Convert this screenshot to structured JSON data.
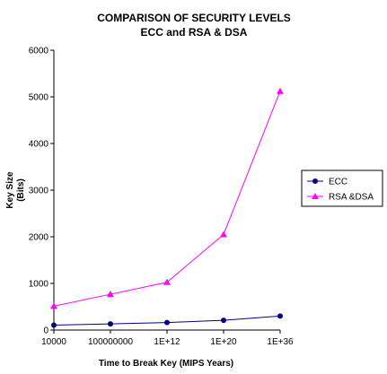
{
  "chart_data": {
    "type": "line",
    "title": "COMPARISON OF SECURITY LEVELS",
    "subtitle": "ECC and RSA & DSA",
    "xlabel": "Time to Break Key (MIPS Years)",
    "ylabel_lines": [
      "Key Size",
      "(Bits)"
    ],
    "categories": [
      "10000",
      "100000000",
      "1E+12",
      "1E+20",
      "1E+36"
    ],
    "ylim": [
      0,
      6000
    ],
    "yticks": [
      0,
      1000,
      2000,
      3000,
      4000,
      5000,
      6000
    ],
    "grid": false,
    "legend_position": "right",
    "series": [
      {
        "name": "ECC",
        "values": [
          106,
          132,
          160,
          210,
          300
        ],
        "color": "#000080",
        "marker": "circle"
      },
      {
        "name": "RSA &DSA",
        "values": [
          512,
          768,
          1024,
          2048,
          5120
        ],
        "color": "#ff00ff",
        "marker": "triangle"
      }
    ]
  }
}
